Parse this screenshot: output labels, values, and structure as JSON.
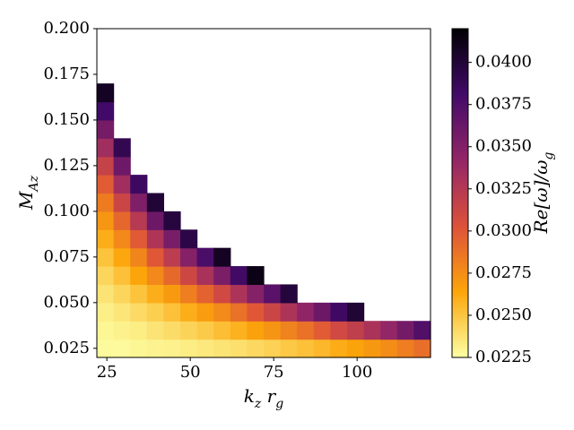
{
  "chart_data": {
    "type": "heatmap",
    "x_label": "k_z r_g",
    "y_label": "M_{Az}",
    "colorbar_label": "Re[ω]/ω_g",
    "x": [
      24.5,
      29.5,
      34.5,
      39.5,
      44.5,
      49.5,
      54.5,
      59.5,
      64.5,
      69.5,
      74.5,
      79.5,
      84.5,
      89.5,
      94.5,
      99.5,
      104.5,
      109.5,
      114.5,
      119.5
    ],
    "y": [
      0.025,
      0.035,
      0.045,
      0.055,
      0.065,
      0.075,
      0.085,
      0.095,
      0.105,
      0.115,
      0.125,
      0.135,
      0.145,
      0.155,
      0.165
    ],
    "values": [
      [
        0.0227,
        0.0227,
        0.0229,
        0.023,
        0.0231,
        0.0233,
        0.0235,
        0.0237,
        0.0239,
        0.0242,
        0.0245,
        0.0249,
        0.0252,
        0.0256,
        0.0261,
        0.0265,
        0.027,
        0.0275,
        0.0282,
        0.0289
      ],
      [
        0.0229,
        0.0231,
        0.0233,
        0.0237,
        0.024,
        0.0244,
        0.0248,
        0.0253,
        0.0259,
        0.0266,
        0.0272,
        0.028,
        0.0288,
        0.0298,
        0.031,
        0.0319,
        0.033,
        0.0342,
        0.0357,
        0.0374
      ],
      [
        0.0232,
        0.0236,
        0.0241,
        0.0246,
        0.0252,
        0.026,
        0.0268,
        0.0276,
        0.0288,
        0.03,
        0.0313,
        0.0329,
        0.0344,
        0.0361,
        0.0383,
        0.0401,
        null,
        null,
        null,
        null
      ],
      [
        0.0237,
        0.0243,
        0.0251,
        0.026,
        0.0269,
        0.0282,
        0.0295,
        0.031,
        0.0329,
        0.0349,
        0.037,
        0.0398,
        null,
        null,
        null,
        null,
        null,
        null,
        null,
        null
      ],
      [
        0.0243,
        0.0252,
        0.0264,
        0.0277,
        0.0292,
        0.0312,
        0.0331,
        0.0353,
        0.0382,
        0.0413,
        null,
        null,
        null,
        null,
        null,
        null,
        null,
        null,
        null,
        null
      ],
      [
        0.0251,
        0.0263,
        0.0279,
        0.03,
        0.0321,
        0.0349,
        0.0377,
        0.0408,
        null,
        null,
        null,
        null,
        null,
        null,
        null,
        null,
        null,
        null,
        null,
        null
      ],
      [
        0.026,
        0.0277,
        0.0299,
        0.0328,
        0.0355,
        0.0394,
        null,
        null,
        null,
        null,
        null,
        null,
        null,
        null,
        null,
        null,
        null,
        null,
        null,
        null
      ],
      [
        0.0271,
        0.0293,
        0.0324,
        0.0361,
        0.0397,
        null,
        null,
        null,
        null,
        null,
        null,
        null,
        null,
        null,
        null,
        null,
        null,
        null,
        null,
        null
      ],
      [
        0.0283,
        0.0313,
        0.0352,
        0.04,
        null,
        null,
        null,
        null,
        null,
        null,
        null,
        null,
        null,
        null,
        null,
        null,
        null,
        null,
        null,
        null
      ],
      [
        0.0298,
        0.0335,
        0.0384,
        null,
        null,
        null,
        null,
        null,
        null,
        null,
        null,
        null,
        null,
        null,
        null,
        null,
        null,
        null,
        null,
        null
      ],
      [
        0.0316,
        0.036,
        null,
        null,
        null,
        null,
        null,
        null,
        null,
        null,
        null,
        null,
        null,
        null,
        null,
        null,
        null,
        null,
        null,
        null
      ],
      [
        0.0335,
        0.039,
        null,
        null,
        null,
        null,
        null,
        null,
        null,
        null,
        null,
        null,
        null,
        null,
        null,
        null,
        null,
        null,
        null,
        null
      ],
      [
        0.0356,
        null,
        null,
        null,
        null,
        null,
        null,
        null,
        null,
        null,
        null,
        null,
        null,
        null,
        null,
        null,
        null,
        null,
        null,
        null
      ],
      [
        0.0381,
        null,
        null,
        null,
        null,
        null,
        null,
        null,
        null,
        null,
        null,
        null,
        null,
        null,
        null,
        null,
        null,
        null,
        null,
        null
      ],
      [
        0.0408,
        null,
        null,
        null,
        null,
        null,
        null,
        null,
        null,
        null,
        null,
        null,
        null,
        null,
        null,
        null,
        null,
        null,
        null,
        null
      ]
    ],
    "cell_width": 5,
    "cell_height": 0.01,
    "xlim": [
      22,
      122
    ],
    "ylim": [
      0.02,
      0.2
    ],
    "xticks": [
      25,
      50,
      75,
      100
    ],
    "yticks": [
      0.025,
      {
        "value": 0.05,
        "label": "0.050"
      },
      0.075,
      {
        "value": 0.1,
        "label": "0.100"
      },
      0.125,
      {
        "value": 0.15,
        "label": "0.150"
      },
      0.175,
      {
        "value": 0.2,
        "label": "0.200"
      }
    ],
    "clim": [
      0.0225,
      0.042
    ],
    "cticks": [
      0.0225,
      {
        "value": 0.025,
        "label": "0.0250"
      },
      0.0275,
      {
        "value": 0.03,
        "label": "0.0300"
      },
      0.0325,
      {
        "value": 0.035,
        "label": "0.0350"
      },
      0.0375,
      {
        "value": 0.04,
        "label": "0.0400"
      }
    ],
    "colormap": [
      "#fcffa4",
      "#fca50a",
      "#dd513a",
      "#932667",
      "#420a68",
      "#000004"
    ]
  }
}
